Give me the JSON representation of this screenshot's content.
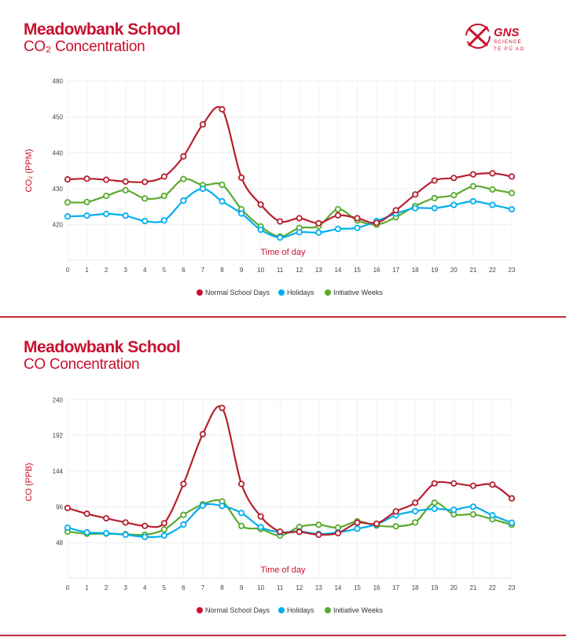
{
  "brand": {
    "logo_text": "GNS SCIENCE TE PŪ AO",
    "accent": "#c8102e"
  },
  "charts_meta": [
    {
      "title": "Meadowbank School",
      "subtitle": "CO₂ Concentration"
    },
    {
      "title": "Meadowbank School",
      "subtitle": "CO Concentration"
    }
  ],
  "chart_data": [
    {
      "type": "line",
      "title": "Meadowbank School",
      "subtitle": "CO₂ Concentration",
      "xlabel": "Time of day",
      "ylabel": "CO₂ (PPM)",
      "x": [
        0,
        1,
        2,
        3,
        4,
        5,
        6,
        7,
        8,
        9,
        10,
        11,
        12,
        13,
        14,
        15,
        16,
        17,
        18,
        19,
        20,
        21,
        22,
        23
      ],
      "x_tick_labels": [
        "0",
        "1",
        "2",
        "3",
        "4",
        "5",
        "6",
        "7",
        "8",
        "9",
        "10",
        "11",
        "12",
        "13",
        "14",
        "15",
        "16",
        "17",
        "18",
        "19",
        "20",
        "21",
        "22",
        "23"
      ],
      "y_tick_labels": [
        "420",
        "430",
        "440",
        "450",
        "480"
      ],
      "grid": true,
      "legend": "bottom",
      "series": [
        {
          "name": "Normal School Days",
          "color": "#b5202e",
          "values": [
            432.6,
            432.8,
            432.5,
            432.0,
            431.9,
            433.4,
            439.0,
            447.9,
            452.1,
            433.1,
            425.6,
            420.9,
            421.8,
            420.4,
            422.6,
            421.8,
            420.5,
            424.0,
            428.4,
            432.3,
            433.0,
            434.0,
            434.3,
            433.4
          ]
        },
        {
          "name": "Holidays",
          "color": "#00aeef",
          "values": [
            422.3,
            422.5,
            423.0,
            422.5,
            421.0,
            421.2,
            426.7,
            430.0,
            426.5,
            423.1,
            418.6,
            416.4,
            417.9,
            417.8,
            418.8,
            419.1,
            421.0,
            423.1,
            424.6,
            424.6,
            425.5,
            426.5,
            425.5,
            424.3
          ]
        },
        {
          "name": "Initiative Weeks",
          "color": "#5aaa2e",
          "values": [
            426.2,
            426.3,
            428.0,
            429.6,
            427.3,
            428.0,
            432.7,
            431.0,
            431.1,
            424.3,
            419.5,
            416.7,
            419.1,
            419.6,
            424.3,
            421.2,
            420.0,
            422.1,
            425.2,
            427.4,
            428.2,
            430.7,
            429.8,
            428.8
          ]
        }
      ]
    },
    {
      "type": "line",
      "title": "Meadowbank School",
      "subtitle": "CO Concentration",
      "xlabel": "Time of day",
      "ylabel": "CO (PPB)",
      "x": [
        0,
        1,
        2,
        3,
        4,
        5,
        6,
        7,
        8,
        9,
        10,
        11,
        12,
        13,
        14,
        15,
        16,
        17,
        18,
        19,
        20,
        21,
        22,
        23
      ],
      "x_tick_labels": [
        "0",
        "1",
        "2",
        "3",
        "4",
        "5",
        "6",
        "7",
        "8",
        "9",
        "10",
        "11",
        "12",
        "13",
        "14",
        "15",
        "16",
        "17",
        "18",
        "19",
        "20",
        "21",
        "22",
        "23"
      ],
      "y_tick_labels": [
        "48",
        "96",
        "144",
        "192",
        "240"
      ],
      "ylim": [
        0,
        240
      ],
      "grid": true,
      "legend": "bottom",
      "series": [
        {
          "name": "Normal School Days",
          "color": "#b5202e",
          "values": [
            94.4,
            86.7,
            80.6,
            75.0,
            70.4,
            74.0,
            126.8,
            193.7,
            229.0,
            126.8,
            83.1,
            62.7,
            62.4,
            58.5,
            60.6,
            74.6,
            73.3,
            89.8,
            101.5,
            127.5,
            127.5,
            124.3,
            125.8,
            107.4
          ]
        },
        {
          "name": "Holidays",
          "color": "#00aeef",
          "values": [
            68.0,
            61.6,
            60.6,
            58.5,
            55.6,
            57.4,
            72.2,
            97.6,
            97.2,
            87.7,
            68.7,
            61.9,
            63.0,
            59.5,
            61.6,
            66.6,
            72.5,
            84.6,
            90.2,
            93.3,
            92.0,
            96.2,
            84.6,
            74.6
          ]
        },
        {
          "name": "Initiative Weeks",
          "color": "#5aaa2e",
          "values": [
            62.7,
            59.8,
            59.9,
            59.2,
            58.5,
            65.5,
            85.2,
            99.4,
            103.2,
            70.4,
            66.2,
            57.4,
            69.0,
            71.9,
            68.0,
            76.4,
            70.8,
            69.8,
            75.0,
            101.5,
            85.9,
            85.9,
            79.3,
            71.9
          ]
        }
      ]
    }
  ]
}
